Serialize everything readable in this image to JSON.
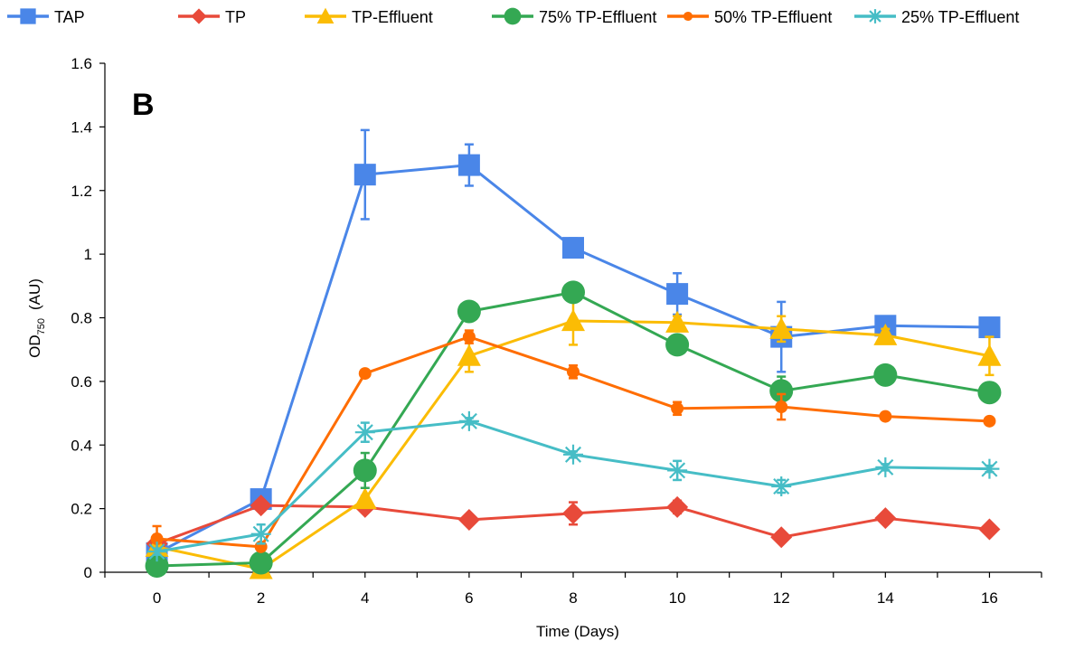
{
  "chart_data": {
    "type": "line",
    "panel_label": "B",
    "title": "",
    "xlabel": "Time (Days)",
    "ylabel_main": "OD",
    "ylabel_sub": "750",
    "ylabel_unit": "(AU)",
    "xlim": [
      -1,
      17
    ],
    "ylim": [
      0,
      1.6
    ],
    "xticks": [
      0,
      2,
      4,
      6,
      8,
      10,
      12,
      14,
      16
    ],
    "yticks": [
      0,
      0.2,
      0.4,
      0.6,
      0.8,
      1,
      1.2,
      1.4,
      1.6
    ],
    "ytick_labels": [
      "0",
      "0.2",
      "0.4",
      "0.6",
      "0.8",
      "1",
      "1.2",
      "1.4",
      "1.6"
    ],
    "legend_position": "top",
    "grid": false,
    "x": [
      0,
      2,
      4,
      6,
      8,
      10,
      12,
      14,
      16
    ],
    "series": [
      {
        "name": "TAP",
        "color": "#4a86e8",
        "marker": "square",
        "values": [
          0.06,
          0.23,
          1.25,
          1.28,
          1.02,
          0.875,
          0.74,
          0.775,
          0.77
        ],
        "errors": [
          0.02,
          0.02,
          0.14,
          0.065,
          0.03,
          0.065,
          0.11,
          0.015,
          0.02
        ]
      },
      {
        "name": "TP",
        "color": "#e84a3a",
        "marker": "diamond",
        "values": [
          0.09,
          0.21,
          0.205,
          0.165,
          0.185,
          0.205,
          0.11,
          0.17,
          0.135
        ],
        "errors": [
          0.01,
          0.01,
          0.01,
          0.01,
          0.035,
          0.02,
          0.01,
          0.01,
          0.01
        ]
      },
      {
        "name": "TP-Effluent",
        "color": "#fbbc04",
        "marker": "triangle",
        "values": [
          0.08,
          0.01,
          0.23,
          0.68,
          0.79,
          0.785,
          0.765,
          0.745,
          0.68
        ],
        "errors": [
          0.01,
          0.005,
          0.01,
          0.05,
          0.075,
          0.02,
          0.04,
          0.02,
          0.06
        ]
      },
      {
        "name": "75% TP-Effluent",
        "color": "#34a853",
        "marker": "circle",
        "values": [
          0.02,
          0.03,
          0.32,
          0.82,
          0.88,
          0.715,
          0.57,
          0.62,
          0.565
        ],
        "errors": [
          0.005,
          0.005,
          0.055,
          0.02,
          0.02,
          0.02,
          0.045,
          0.02,
          0.02
        ]
      },
      {
        "name": "50% TP-Effluent",
        "color": "#ff6d01",
        "marker": "smallcircle",
        "values": [
          0.105,
          0.08,
          0.625,
          0.74,
          0.63,
          0.515,
          0.52,
          0.49,
          0.475
        ],
        "errors": [
          0.04,
          0.01,
          0.01,
          0.02,
          0.02,
          0.02,
          0.04,
          0.01,
          0.01
        ]
      },
      {
        "name": "25% TP-Effluent",
        "color": "#46bdc6",
        "marker": "star",
        "values": [
          0.065,
          0.12,
          0.44,
          0.475,
          0.37,
          0.32,
          0.27,
          0.33,
          0.325
        ],
        "errors": [
          0.01,
          0.03,
          0.03,
          0.01,
          0.01,
          0.03,
          0.02,
          0.01,
          0.01
        ]
      }
    ]
  }
}
